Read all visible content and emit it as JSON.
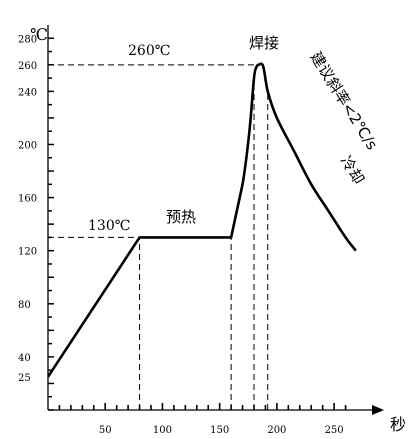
{
  "chart_data": {
    "type": "line",
    "title": "",
    "xlabel": "秒",
    "ylabel": "℃",
    "xlim": [
      0,
      270
    ],
    "ylim": [
      0,
      290
    ],
    "x_ticks": [
      50,
      100,
      150,
      200,
      250
    ],
    "x_tick_labels": [
      "50",
      "100",
      "150",
      "200",
      "250"
    ],
    "y_ticks": [
      25,
      40,
      80,
      120,
      160,
      200,
      240,
      260,
      280
    ],
    "y_tick_labels": [
      "25",
      "40",
      "80",
      "120",
      "160",
      "200",
      "240",
      "260",
      "280"
    ],
    "series": [
      {
        "values": [
          [
            0,
            25
          ],
          [
            80,
            130
          ],
          [
            160,
            130
          ],
          [
            170,
            170
          ],
          [
            176,
            210
          ],
          [
            180,
            250
          ],
          [
            182,
            258
          ],
          [
            184,
            260
          ],
          [
            188,
            259
          ],
          [
            192,
            240
          ],
          [
            200,
            220
          ],
          [
            215,
            195
          ],
          [
            230,
            170
          ],
          [
            245,
            150
          ],
          [
            260,
            130
          ],
          [
            269,
            120
          ]
        ]
      }
    ],
    "reference_lines": [
      {
        "type": "h",
        "y": 260,
        "x_from": 0,
        "x_to": 184
      },
      {
        "type": "h",
        "y": 130,
        "x_from": 0,
        "x_to": 80
      },
      {
        "type": "v",
        "x": 80,
        "y_from": 0,
        "y_to": 130
      },
      {
        "type": "v",
        "x": 160,
        "y_from": 0,
        "y_to": 130
      },
      {
        "type": "v",
        "x": 180,
        "y_from": 0,
        "y_to": 250
      },
      {
        "type": "v",
        "x": 192,
        "y_from": 0,
        "y_to": 240
      }
    ],
    "annotations": {
      "peak_temp": "260℃",
      "preheat_temp": "130℃",
      "preheat_zone": "预热",
      "solder_zone": "焊接",
      "slope_note": "建议斜率<2℃/s",
      "cooling_zone": "冷却"
    }
  }
}
